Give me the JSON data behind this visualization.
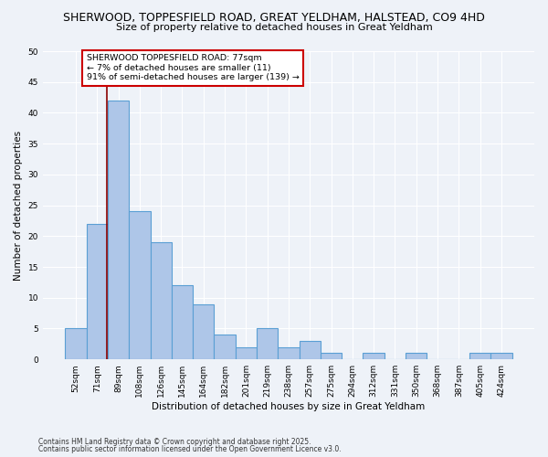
{
  "title1": "SHERWOOD, TOPPESFIELD ROAD, GREAT YELDHAM, HALSTEAD, CO9 4HD",
  "title2": "Size of property relative to detached houses in Great Yeldham",
  "xlabel": "Distribution of detached houses by size in Great Yeldham",
  "ylabel": "Number of detached properties",
  "bar_labels": [
    "52sqm",
    "71sqm",
    "89sqm",
    "108sqm",
    "126sqm",
    "145sqm",
    "164sqm",
    "182sqm",
    "201sqm",
    "219sqm",
    "238sqm",
    "257sqm",
    "275sqm",
    "294sqm",
    "312sqm",
    "331sqm",
    "350sqm",
    "368sqm",
    "387sqm",
    "405sqm",
    "424sqm"
  ],
  "bar_values": [
    5,
    22,
    42,
    24,
    19,
    12,
    9,
    4,
    2,
    5,
    2,
    3,
    1,
    0,
    1,
    0,
    1,
    0,
    0,
    1,
    1
  ],
  "bar_color": "#aec6e8",
  "bar_edge_color": "#5a9fd4",
  "vline_x": 1.45,
  "vline_color": "#8b0000",
  "annotation_title": "SHERWOOD TOPPESFIELD ROAD: 77sqm",
  "annotation_line1": "← 7% of detached houses are smaller (11)",
  "annotation_line2": "91% of semi-detached houses are larger (139) →",
  "annotation_box_color": "#ffffff",
  "annotation_box_edge": "#cc0000",
  "ylim": [
    0,
    50
  ],
  "yticks": [
    0,
    5,
    10,
    15,
    20,
    25,
    30,
    35,
    40,
    45,
    50
  ],
  "footnote1": "Contains HM Land Registry data © Crown copyright and database right 2025.",
  "footnote2": "Contains public sector information licensed under the Open Government Licence v3.0.",
  "bg_color": "#eef2f8"
}
